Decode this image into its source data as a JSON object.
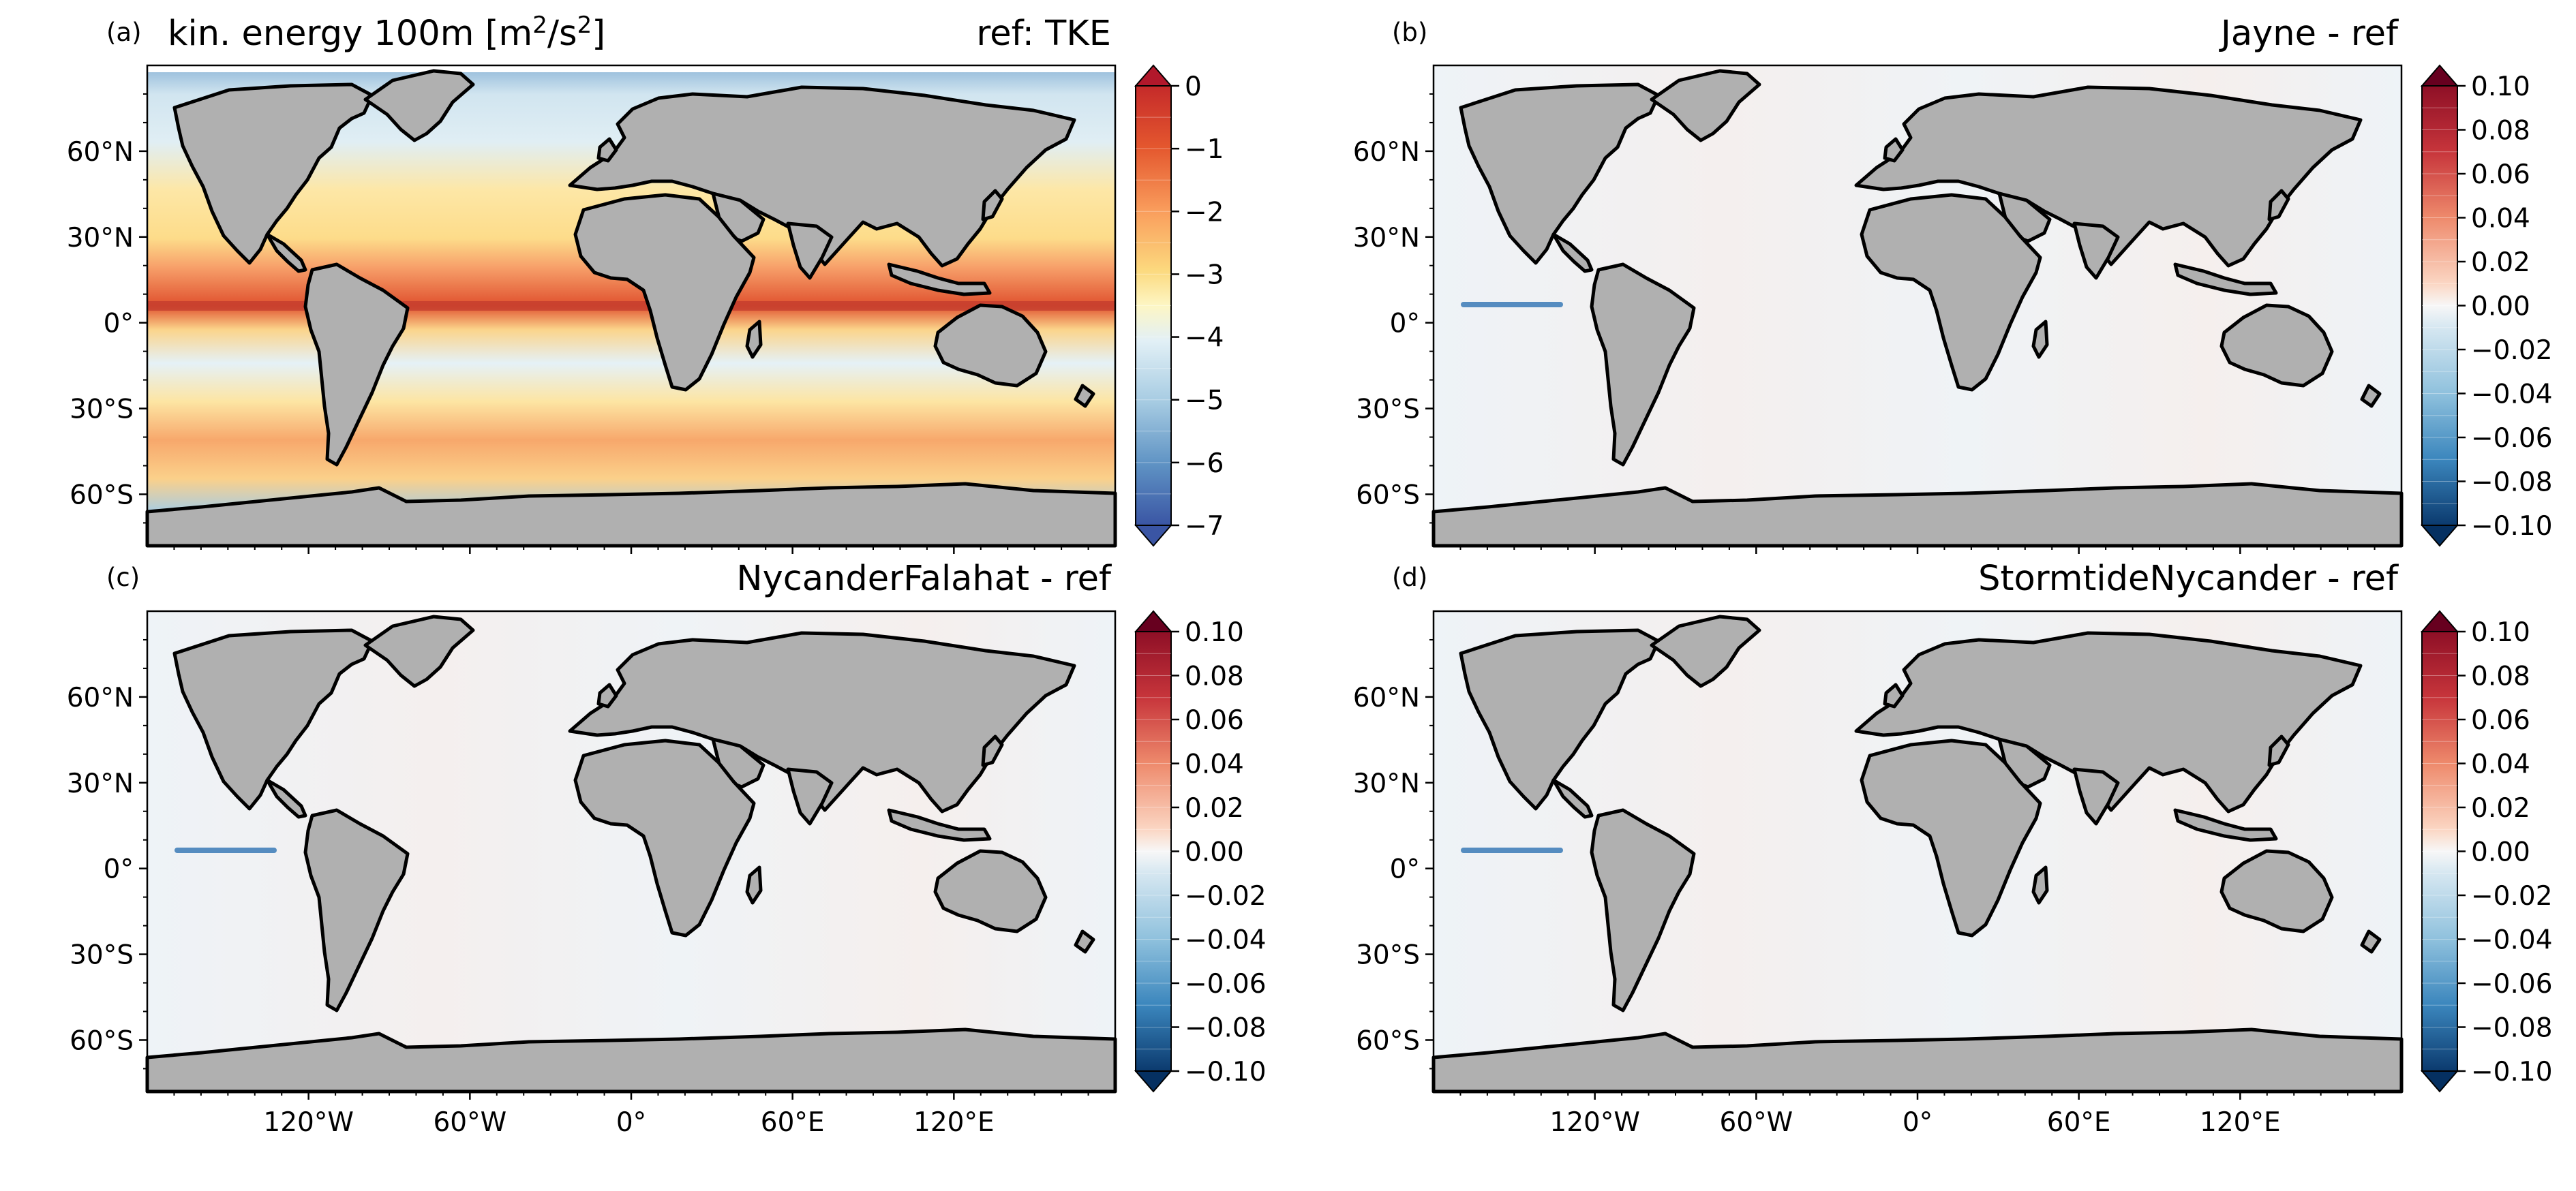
{
  "figure": {
    "projection": "equirectangular world map, longitude range -180 to 180, latitude range -78 to 90",
    "land_color": "#b0b0b0",
    "coast_color": "#000000",
    "colormap": "RdBu_r (blue=low, red=high), discrete levels, extend both"
  },
  "axes_ticks": {
    "lat_labels": [
      "60°N",
      "30°N",
      "0°",
      "30°S",
      "60°S"
    ],
    "lat_values": [
      60,
      30,
      0,
      -30,
      -60
    ],
    "lon_labels": [
      "120°W",
      "60°W",
      "0°",
      "60°E",
      "120°E"
    ],
    "lon_values": [
      -120,
      -60,
      0,
      60,
      120
    ]
  },
  "panels": [
    {
      "letter": "(a)",
      "title_left": "kin. energy 100m [m",
      "title_left_sup1": "2",
      "title_left_mid": "/s",
      "title_left_sup2": "2",
      "title_left_end": "]",
      "title_right": "ref: TKE",
      "field": "log10 kinetic energy at 100 m, reference run (TKE)",
      "colorbar": {
        "min": -7,
        "max": 0,
        "tick_labels": [
          "0",
          "−1",
          "−2",
          "−3",
          "−4",
          "−5",
          "−6",
          "−7"
        ],
        "tick_values": [
          0,
          -1,
          -2,
          -3,
          -4,
          -5,
          -6,
          -7
        ],
        "n_levels": 14
      }
    },
    {
      "letter": "(b)",
      "title_right": "Jayne - ref",
      "field": "difference Jayne minus reference (near zero; small negative anomaly along equatorial east Pacific)",
      "colorbar": {
        "min": -0.1,
        "max": 0.1,
        "tick_labels": [
          "0.10",
          "0.08",
          "0.06",
          "0.04",
          "0.02",
          "0.00",
          "−0.02",
          "−0.04",
          "−0.06",
          "−0.08",
          "−0.10"
        ],
        "tick_values": [
          0.1,
          0.08,
          0.06,
          0.04,
          0.02,
          0.0,
          -0.02,
          -0.04,
          -0.06,
          -0.08,
          -0.1
        ],
        "n_levels": 20
      }
    },
    {
      "letter": "(c)",
      "title_right": "NycanderFalahat - ref",
      "field": "difference NycanderFalahat minus reference",
      "colorbar": {
        "min": -0.1,
        "max": 0.1,
        "tick_labels": [
          "0.10",
          "0.08",
          "0.06",
          "0.04",
          "0.02",
          "0.00",
          "−0.02",
          "−0.04",
          "−0.06",
          "−0.08",
          "−0.10"
        ],
        "tick_values": [
          0.1,
          0.08,
          0.06,
          0.04,
          0.02,
          0.0,
          -0.02,
          -0.04,
          -0.06,
          -0.08,
          -0.1
        ],
        "n_levels": 20
      }
    },
    {
      "letter": "(d)",
      "title_right": "StormtideNycander - ref",
      "field": "difference StormtideNycander minus reference",
      "colorbar": {
        "min": -0.1,
        "max": 0.1,
        "tick_labels": [
          "0.10",
          "0.08",
          "0.06",
          "0.04",
          "0.02",
          "0.00",
          "−0.02",
          "−0.04",
          "−0.06",
          "−0.08",
          "−0.10"
        ],
        "tick_values": [
          0.1,
          0.08,
          0.06,
          0.04,
          0.02,
          0.0,
          -0.02,
          -0.04,
          -0.06,
          -0.08,
          -0.1
        ],
        "n_levels": 20
      }
    }
  ]
}
